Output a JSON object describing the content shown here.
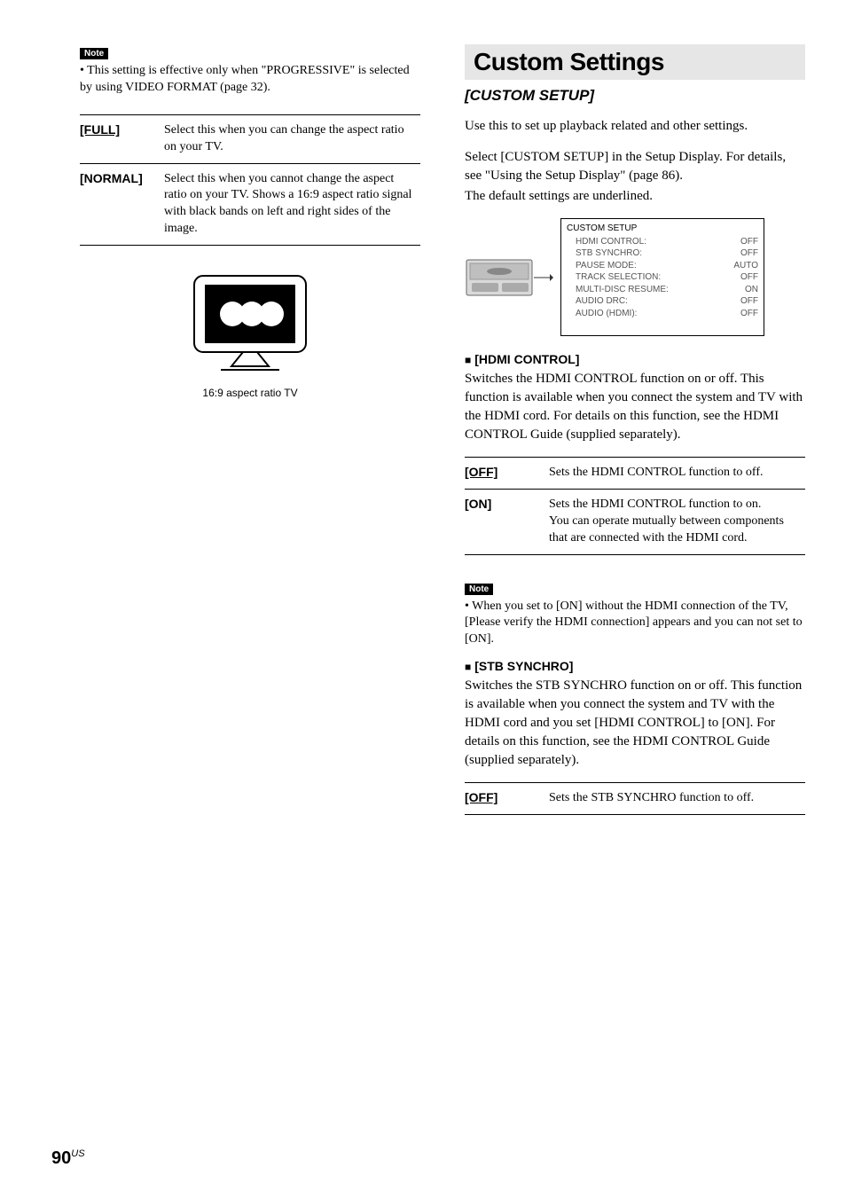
{
  "left": {
    "note_tag": "Note",
    "note_bullet": "• This setting is effective only when \"PROGRESSIVE\" is selected by using VIDEO FORMAT (page 32).",
    "options": [
      {
        "key": "[FULL]",
        "underline": true,
        "desc": "Select this when you can change the aspect ratio on your TV."
      },
      {
        "key": "[NORMAL]",
        "underline": false,
        "desc": "Select this when you cannot change the aspect ratio on your TV. Shows a 16:9 aspect ratio signal with black bands on left and right sides of the image."
      }
    ],
    "tv_caption": "16:9 aspect ratio TV"
  },
  "right": {
    "heading": "Custom Settings",
    "subheading": "[CUSTOM SETUP]",
    "intro": "Use this to set up playback related and other settings.",
    "para2": "Select [CUSTOM SETUP] in the Setup Display. For details, see \"Using the Setup Display\" (page 86).",
    "para3": "The default settings are underlined.",
    "setup_box": {
      "title": "CUSTOM SETUP",
      "rows": [
        {
          "label": "HDMI CONTROL:",
          "value": "OFF"
        },
        {
          "label": "STB SYNCHRO:",
          "value": "OFF"
        },
        {
          "label": "PAUSE MODE:",
          "value": "AUTO"
        },
        {
          "label": "TRACK SELECTION:",
          "value": "OFF"
        },
        {
          "label": "MULTI-DISC RESUME:",
          "value": "ON"
        },
        {
          "label": "AUDIO DRC:",
          "value": "OFF"
        },
        {
          "label": "AUDIO (HDMI):",
          "value": "OFF"
        }
      ]
    },
    "hdmi": {
      "title": "[HDMI CONTROL]",
      "body": "Switches the HDMI CONTROL function on or off. This function is available when you connect the system and TV with the HDMI cord. For details on this function, see the HDMI CONTROL Guide (supplied separately).",
      "options": [
        {
          "key": "[OFF]",
          "underline": true,
          "desc": "Sets the HDMI CONTROL function to off."
        },
        {
          "key": "[ON]",
          "underline": false,
          "desc": "Sets the HDMI CONTROL function to on.\nYou can operate mutually between components that are connected with the HDMI cord."
        }
      ],
      "note_tag": "Note",
      "note_bullet": "• When you set to [ON] without the HDMI connection of the TV, [Please verify the HDMI connection] appears and you can not set to [ON]."
    },
    "stb": {
      "title": "[STB SYNCHRO]",
      "body": "Switches the STB SYNCHRO function on or off. This function is available when you connect the system and TV with the HDMI cord and you set [HDMI CONTROL] to [ON]. For details on this function, see the HDMI CONTROL Guide (supplied separately).",
      "options": [
        {
          "key": "[OFF]",
          "underline": true,
          "desc": "Sets the STB SYNCHRO function to off."
        }
      ]
    }
  },
  "page_number": "90",
  "page_region": "US"
}
